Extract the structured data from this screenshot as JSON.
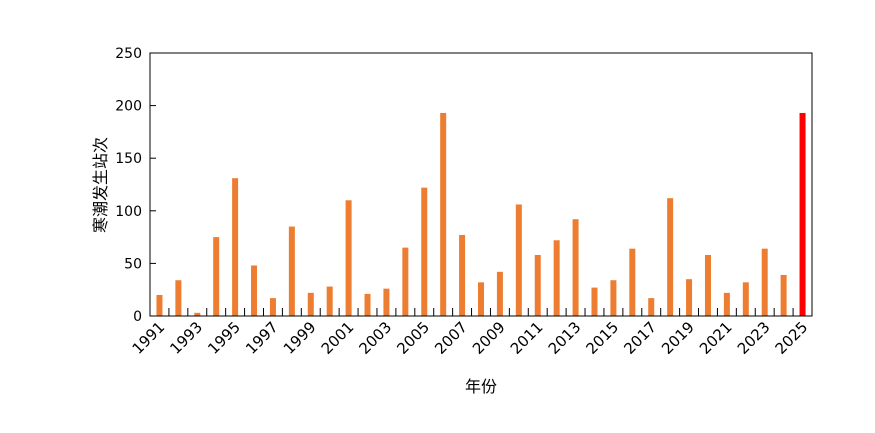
{
  "chart_data": {
    "type": "bar",
    "title": "",
    "xlabel": "年份",
    "ylabel": "寒潮发生站次",
    "ylim": [
      0,
      250
    ],
    "yticks": [
      0,
      50,
      100,
      150,
      200,
      250
    ],
    "grid": false,
    "categories": [
      1991,
      1992,
      1993,
      1994,
      1995,
      1996,
      1997,
      1998,
      1999,
      2000,
      2001,
      2002,
      2003,
      2004,
      2005,
      2006,
      2007,
      2008,
      2009,
      2010,
      2011,
      2012,
      2013,
      2014,
      2015,
      2016,
      2017,
      2018,
      2019,
      2020,
      2021,
      2022,
      2023,
      2024,
      2025
    ],
    "xtick_labels": [
      "1991",
      "1993",
      "1995",
      "1997",
      "1999",
      "2001",
      "2003",
      "2005",
      "2007",
      "2009",
      "2011",
      "2013",
      "2015",
      "2017",
      "2019",
      "2021",
      "2023",
      "2025"
    ],
    "values": [
      20,
      34,
      3,
      75,
      131,
      48,
      17,
      85,
      22,
      28,
      110,
      21,
      26,
      65,
      122,
      193,
      77,
      32,
      42,
      106,
      58,
      72,
      92,
      27,
      34,
      64,
      17,
      112,
      35,
      58,
      22,
      32,
      64,
      39,
      193
    ],
    "colors": {
      "default": "#ED7D31",
      "highlight": "#FF0000"
    },
    "highlight_category": 2025
  }
}
